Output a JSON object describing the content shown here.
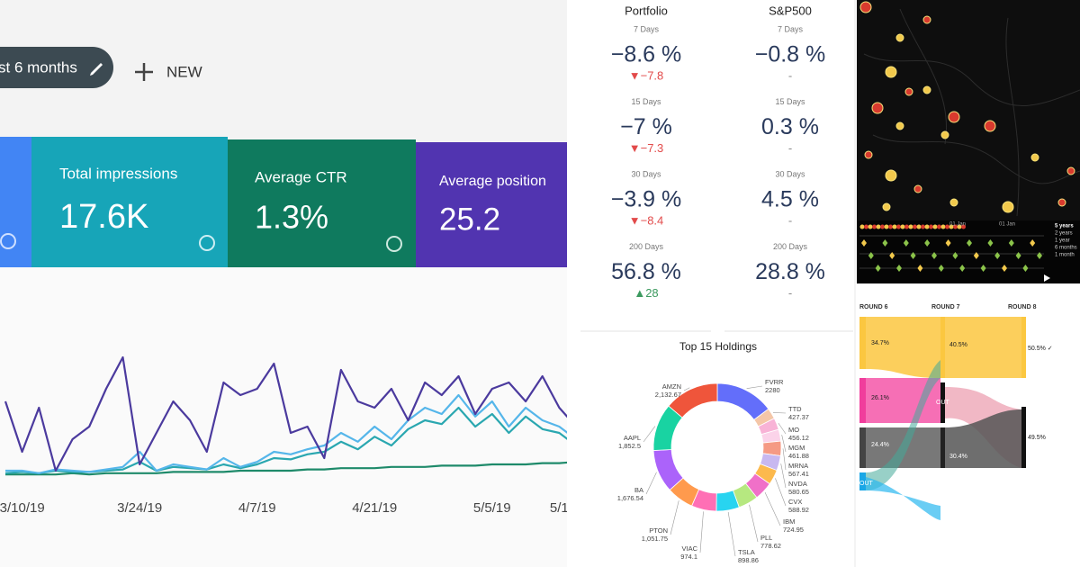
{
  "search_console": {
    "date_chip": "st 6 months",
    "new_button": "NEW",
    "cards": [
      {
        "label": "Total impressions",
        "value": "17.6K"
      },
      {
        "label": "Average CTR",
        "value": "1.3%"
      },
      {
        "label": "Average position",
        "value": "25.2"
      }
    ],
    "chart": {
      "type": "line",
      "x": [
        0,
        2,
        4,
        6,
        8,
        10,
        12,
        14,
        16,
        18,
        20,
        22,
        24,
        26,
        28,
        30,
        32,
        34,
        36,
        38,
        40,
        42,
        44,
        46,
        48,
        50,
        52,
        54,
        56,
        58,
        60,
        62,
        64,
        66,
        68
      ],
      "xlim": [
        0,
        68
      ],
      "xticks": [
        {
          "value": 2,
          "label": "3/10/19"
        },
        {
          "value": 16,
          "label": "3/24/19"
        },
        {
          "value": 30,
          "label": "4/7/19"
        },
        {
          "value": 44,
          "label": "4/21/19"
        },
        {
          "value": 58,
          "label": "5/5/19"
        },
        {
          "value": 66,
          "label": "5/1"
        }
      ],
      "ylim": [
        0,
        100
      ],
      "series": [
        {
          "color": "#1e8a6a",
          "values": [
            2,
            2,
            2,
            2,
            3,
            2,
            3,
            3,
            3,
            3,
            4,
            4,
            4,
            4,
            5,
            5,
            5,
            5,
            6,
            6,
            7,
            7,
            7,
            8,
            8,
            8,
            9,
            9,
            9,
            10,
            10,
            10,
            11,
            11,
            12
          ]
        },
        {
          "color": "#2aa7b0",
          "values": [
            3,
            4,
            3,
            5,
            4,
            4,
            5,
            6,
            12,
            5,
            8,
            7,
            6,
            10,
            7,
            10,
            15,
            14,
            18,
            20,
            28,
            22,
            32,
            25,
            38,
            45,
            42,
            55,
            40,
            50,
            35,
            48,
            38,
            35,
            25
          ]
        },
        {
          "color": "#55b6ea",
          "values": [
            5,
            5,
            3,
            6,
            5,
            4,
            6,
            8,
            20,
            5,
            10,
            8,
            6,
            15,
            8,
            12,
            20,
            18,
            22,
            25,
            35,
            28,
            40,
            30,
            45,
            55,
            50,
            65,
            48,
            60,
            40,
            55,
            45,
            40,
            30
          ]
        },
        {
          "color": "#4b3a9e",
          "values": [
            60,
            20,
            55,
            5,
            30,
            40,
            70,
            95,
            10,
            35,
            60,
            45,
            20,
            75,
            65,
            70,
            90,
            35,
            40,
            15,
            85,
            60,
            55,
            70,
            45,
            75,
            65,
            80,
            50,
            70,
            75,
            60,
            80,
            55,
            40
          ]
        }
      ]
    }
  },
  "performance": {
    "columns": [
      "Portfolio",
      "S&P500"
    ],
    "rows": [
      {
        "period": "7 Days",
        "portfolio": "−8.6 %",
        "portfolio_change": "▼−7.8",
        "sp500": "−0.8 %",
        "sp500_change": "-"
      },
      {
        "period": "15 Days",
        "portfolio": "−7 %",
        "portfolio_change": "▼−7.3",
        "sp500": "0.3 %",
        "sp500_change": "-"
      },
      {
        "period": "30 Days",
        "portfolio": "−3.9 %",
        "portfolio_change": "▼−8.4",
        "sp500": "4.5 %",
        "sp500_change": "-"
      },
      {
        "period": "200 Days",
        "portfolio": "56.8 %",
        "portfolio_change": "▲28",
        "sp500": "28.8 %",
        "sp500_change": "-"
      }
    ]
  },
  "chart_data": {
    "type": "pie",
    "donut": true,
    "title": "Top 15 Holdings",
    "categories": [
      "FVRR",
      "TTD",
      "MO",
      "MGM",
      "MRNA",
      "NVDA",
      "CVX",
      "IBM",
      "PLL",
      "TSLA",
      "VIAC",
      "PTON",
      "BA",
      "AAPL",
      "AMZN"
    ],
    "values": [
      2280,
      427.37,
      456.12,
      461.88,
      567.41,
      580.65,
      588.92,
      724.95,
      778.62,
      898.86,
      974.1,
      1051.75,
      1676.54,
      1852.5,
      2132.67
    ],
    "value_labels": [
      "2280",
      "427.37",
      "456.12",
      "461.88",
      "567.41",
      "580.65",
      "588.92",
      "724.95",
      "778.62",
      "898.86",
      "974.1",
      "1,051.75",
      "1,676.54",
      "1,852.5",
      "2,132.67"
    ],
    "colors": [
      "#636efa",
      "#f4c6a8",
      "#f8b3d6",
      "#fbd3e9",
      "#f59a84",
      "#c8b8f0",
      "#fcb94d",
      "#f070c8",
      "#b6e880",
      "#28d4f0",
      "#ff6fb5",
      "#ff9a4d",
      "#ab63fa",
      "#19d3a2",
      "#ef553b"
    ]
  },
  "timeline": {
    "ranges": [
      "5 years",
      "2 years",
      "1 year",
      "6 months",
      "1 month"
    ],
    "dates": [
      "01 Jan",
      "01 Jan"
    ]
  },
  "sankey": {
    "rounds": [
      "ROUND 6",
      "ROUND 7",
      "ROUND 8"
    ],
    "labels": [
      "34.7%",
      "40.5%",
      "50.5% ✓",
      "26.1%",
      "OUT",
      "24.4%",
      "30.4%",
      "49.5%",
      "OUT"
    ]
  }
}
